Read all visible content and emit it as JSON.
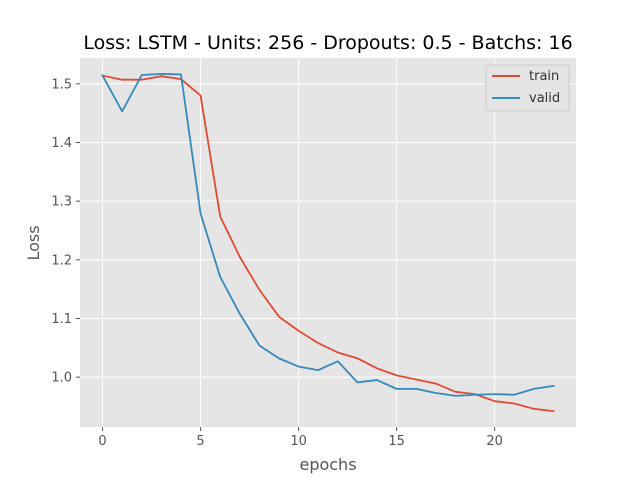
{
  "chart_data": {
    "type": "line",
    "title": "Loss: LSTM - Units: 256 - Dropouts: 0.5 - Batchs: 16",
    "xlabel": "epochs",
    "ylabel": "Loss",
    "xlim": [
      -1.15,
      24.15
    ],
    "ylim": [
      0.915,
      1.544
    ],
    "xticks": [
      0,
      5,
      10,
      15,
      20
    ],
    "yticks": [
      1.0,
      1.1,
      1.2,
      1.3,
      1.4,
      1.5
    ],
    "grid": true,
    "legend_position": "upper-right",
    "x": [
      0,
      1,
      2,
      3,
      4,
      5,
      6,
      7,
      8,
      9,
      10,
      11,
      12,
      13,
      14,
      15,
      16,
      17,
      18,
      19,
      20,
      21,
      22,
      23
    ],
    "series": [
      {
        "name": "train",
        "color": "#E24A33",
        "values": [
          1.514,
          1.507,
          1.507,
          1.513,
          1.508,
          1.48,
          1.274,
          1.205,
          1.149,
          1.103,
          1.079,
          1.058,
          1.042,
          1.032,
          1.015,
          1.003,
          0.996,
          0.989,
          0.975,
          0.971,
          0.959,
          0.955,
          0.946,
          0.942
        ]
      },
      {
        "name": "valid",
        "color": "#348ABD",
        "values": [
          1.514,
          1.453,
          1.515,
          1.517,
          1.516,
          1.279,
          1.171,
          1.108,
          1.054,
          1.032,
          1.018,
          1.012,
          1.027,
          0.991,
          0.995,
          0.98,
          0.98,
          0.973,
          0.968,
          0.97,
          0.971,
          0.97,
          0.98,
          0.985
        ]
      }
    ]
  }
}
